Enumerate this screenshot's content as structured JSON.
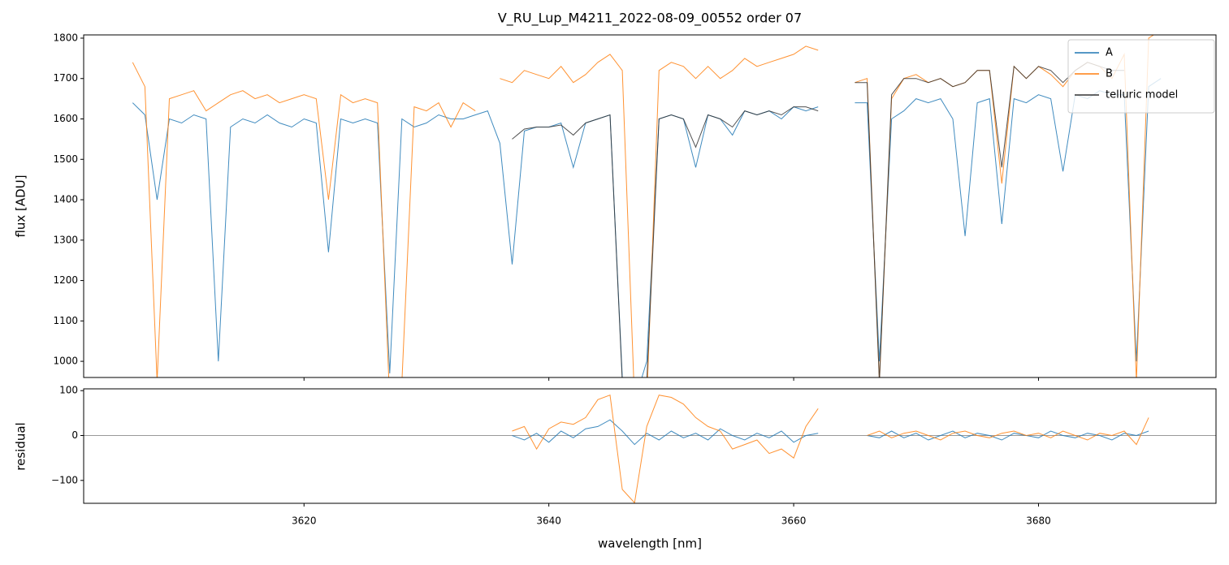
{
  "chart_data": [
    {
      "type": "line",
      "title": "V_RU_Lup_M4211_2022-08-09_00552  order 07",
      "ylabel": "flux [ADU]",
      "xlim": [
        3602.0,
        3694.5
      ],
      "ylim": [
        960,
        1808
      ],
      "yticks": [
        1000,
        1100,
        1200,
        1300,
        1400,
        1500,
        1600,
        1700,
        1800
      ],
      "legend": "upper right",
      "x": [
        3606,
        3607,
        3608,
        3609,
        3610,
        3611,
        3612,
        3613,
        3614,
        3615,
        3616,
        3617,
        3618,
        3619,
        3620,
        3621,
        3622,
        3623,
        3624,
        3625,
        3626,
        3627,
        3628,
        3629,
        3630,
        3631,
        3632,
        3633,
        3634,
        3635,
        3636,
        3637,
        3638,
        3639,
        3640,
        3641,
        3642,
        3643,
        3644,
        3645,
        3646,
        3647,
        3648,
        3649,
        3650,
        3651,
        3652,
        3653,
        3654,
        3655,
        3656,
        3657,
        3658,
        3659,
        3660,
        3661,
        3662,
        3663,
        3664,
        3665,
        3666,
        3667,
        3668,
        3669,
        3670,
        3671,
        3672,
        3673,
        3674,
        3675,
        3676,
        3677,
        3678,
        3679,
        3680,
        3681,
        3682,
        3683,
        3684,
        3685,
        3686,
        3687,
        3688,
        3689,
        3690
      ],
      "series": [
        {
          "name": "A",
          "color": "#1f77b4",
          "values": [
            1640,
            1610,
            1400,
            1600,
            1590,
            1610,
            1600,
            1000,
            1580,
            1600,
            1590,
            1610,
            1590,
            1580,
            1600,
            1590,
            1270,
            1600,
            1590,
            1600,
            1590,
            970,
            1600,
            1580,
            1590,
            1610,
            1600,
            1600,
            1610,
            1620,
            1540,
            1240,
            1570,
            1580,
            1580,
            1590,
            1480,
            1590,
            1600,
            1610,
            960,
            900,
            1000,
            1600,
            1610,
            1600,
            1480,
            1610,
            1600,
            1560,
            1620,
            1610,
            1620,
            1600,
            1630,
            1620,
            1630,
            null,
            null,
            1640,
            1640,
            1000,
            1600,
            1620,
            1650,
            1640,
            1650,
            1600,
            1310,
            1640,
            1650,
            1340,
            1650,
            1640,
            1660,
            1650,
            1470,
            1660,
            1650,
            1670,
            1660,
            1660,
            1000,
            1680,
            1700
          ]
        },
        {
          "name": "B",
          "color": "#ff7f0e",
          "values": [
            1740,
            1680,
            950,
            1650,
            1660,
            1670,
            1620,
            1640,
            1660,
            1670,
            1650,
            1660,
            1640,
            1650,
            1660,
            1650,
            1400,
            1660,
            1640,
            1650,
            1640,
            900,
            950,
            1630,
            1620,
            1640,
            1580,
            1640,
            1620,
            null,
            1700,
            1690,
            1720,
            1710,
            1700,
            1730,
            1690,
            1710,
            1740,
            1760,
            1720,
            900,
            900,
            1720,
            1740,
            1730,
            1700,
            1730,
            1700,
            1720,
            1750,
            1730,
            1740,
            1750,
            1760,
            1780,
            1770,
            null,
            null,
            1690,
            1700,
            950,
            1650,
            1700,
            1710,
            1690,
            1700,
            1680,
            1690,
            1720,
            1720,
            1440,
            1730,
            1700,
            1730,
            1710,
            1680,
            1720,
            1740,
            1730,
            1700,
            1760,
            950,
            1800,
            1820
          ]
        },
        {
          "name": "telluric model",
          "color": "#333333",
          "values": [
            null,
            null,
            null,
            null,
            null,
            null,
            null,
            null,
            null,
            null,
            null,
            null,
            null,
            null,
            null,
            null,
            null,
            null,
            null,
            null,
            null,
            null,
            null,
            null,
            null,
            null,
            null,
            null,
            null,
            null,
            null,
            1550,
            1575,
            1580,
            1580,
            1585,
            1560,
            1590,
            1600,
            1610,
            950,
            950,
            950,
            1600,
            1610,
            1600,
            1530,
            1610,
            1600,
            1580,
            1620,
            1610,
            1620,
            1610,
            1630,
            1630,
            1620,
            null,
            null,
            1690,
            1690,
            950,
            1660,
            1700,
            1700,
            1690,
            1700,
            1680,
            1690,
            1720,
            1720,
            1480,
            1730,
            1700,
            1730,
            1720,
            1690,
            1720,
            1740,
            1730,
            1720,
            1720,
            null,
            null,
            null
          ]
        }
      ]
    },
    {
      "type": "line",
      "ylabel": "residual",
      "xlabel": "wavelength [nm]",
      "xlim": [
        3602.0,
        3694.5
      ],
      "ylim": [
        -151,
        104
      ],
      "xticks": [
        3620,
        3640,
        3660,
        3680
      ],
      "yticks": [
        {
          "value": -100,
          "label": "−100"
        },
        0,
        100
      ],
      "hlines": [
        0
      ],
      "x": [
        3637,
        3638,
        3639,
        3640,
        3641,
        3642,
        3643,
        3644,
        3645,
        3646,
        3647,
        3648,
        3649,
        3650,
        3651,
        3652,
        3653,
        3654,
        3655,
        3656,
        3657,
        3658,
        3659,
        3660,
        3661,
        3662,
        3663,
        3664,
        3665,
        3666,
        3667,
        3668,
        3669,
        3670,
        3671,
        3672,
        3673,
        3674,
        3675,
        3676,
        3677,
        3678,
        3679,
        3680,
        3681,
        3682,
        3683,
        3684,
        3685,
        3686,
        3687,
        3688,
        3689
      ],
      "series": [
        {
          "color": "#1f77b4",
          "values": [
            0,
            -10,
            5,
            -15,
            10,
            -5,
            15,
            20,
            35,
            10,
            -20,
            5,
            -10,
            10,
            -5,
            5,
            -10,
            15,
            0,
            -10,
            5,
            -5,
            10,
            -15,
            0,
            5,
            null,
            null,
            null,
            0,
            -5,
            10,
            -5,
            5,
            -10,
            0,
            10,
            -5,
            5,
            0,
            -10,
            5,
            0,
            -5,
            10,
            0,
            -5,
            5,
            0,
            -10,
            5,
            0,
            10
          ]
        },
        {
          "color": "#ff7f0e",
          "values": [
            10,
            20,
            -30,
            15,
            30,
            25,
            40,
            80,
            90,
            -120,
            -150,
            20,
            90,
            85,
            70,
            40,
            20,
            10,
            -30,
            -20,
            -10,
            -40,
            -30,
            -50,
            20,
            60,
            null,
            null,
            null,
            0,
            10,
            -5,
            5,
            10,
            0,
            -10,
            5,
            10,
            0,
            -5,
            5,
            10,
            0,
            5,
            -5,
            10,
            0,
            -10,
            5,
            0,
            10,
            -20,
            40
          ]
        }
      ]
    }
  ]
}
